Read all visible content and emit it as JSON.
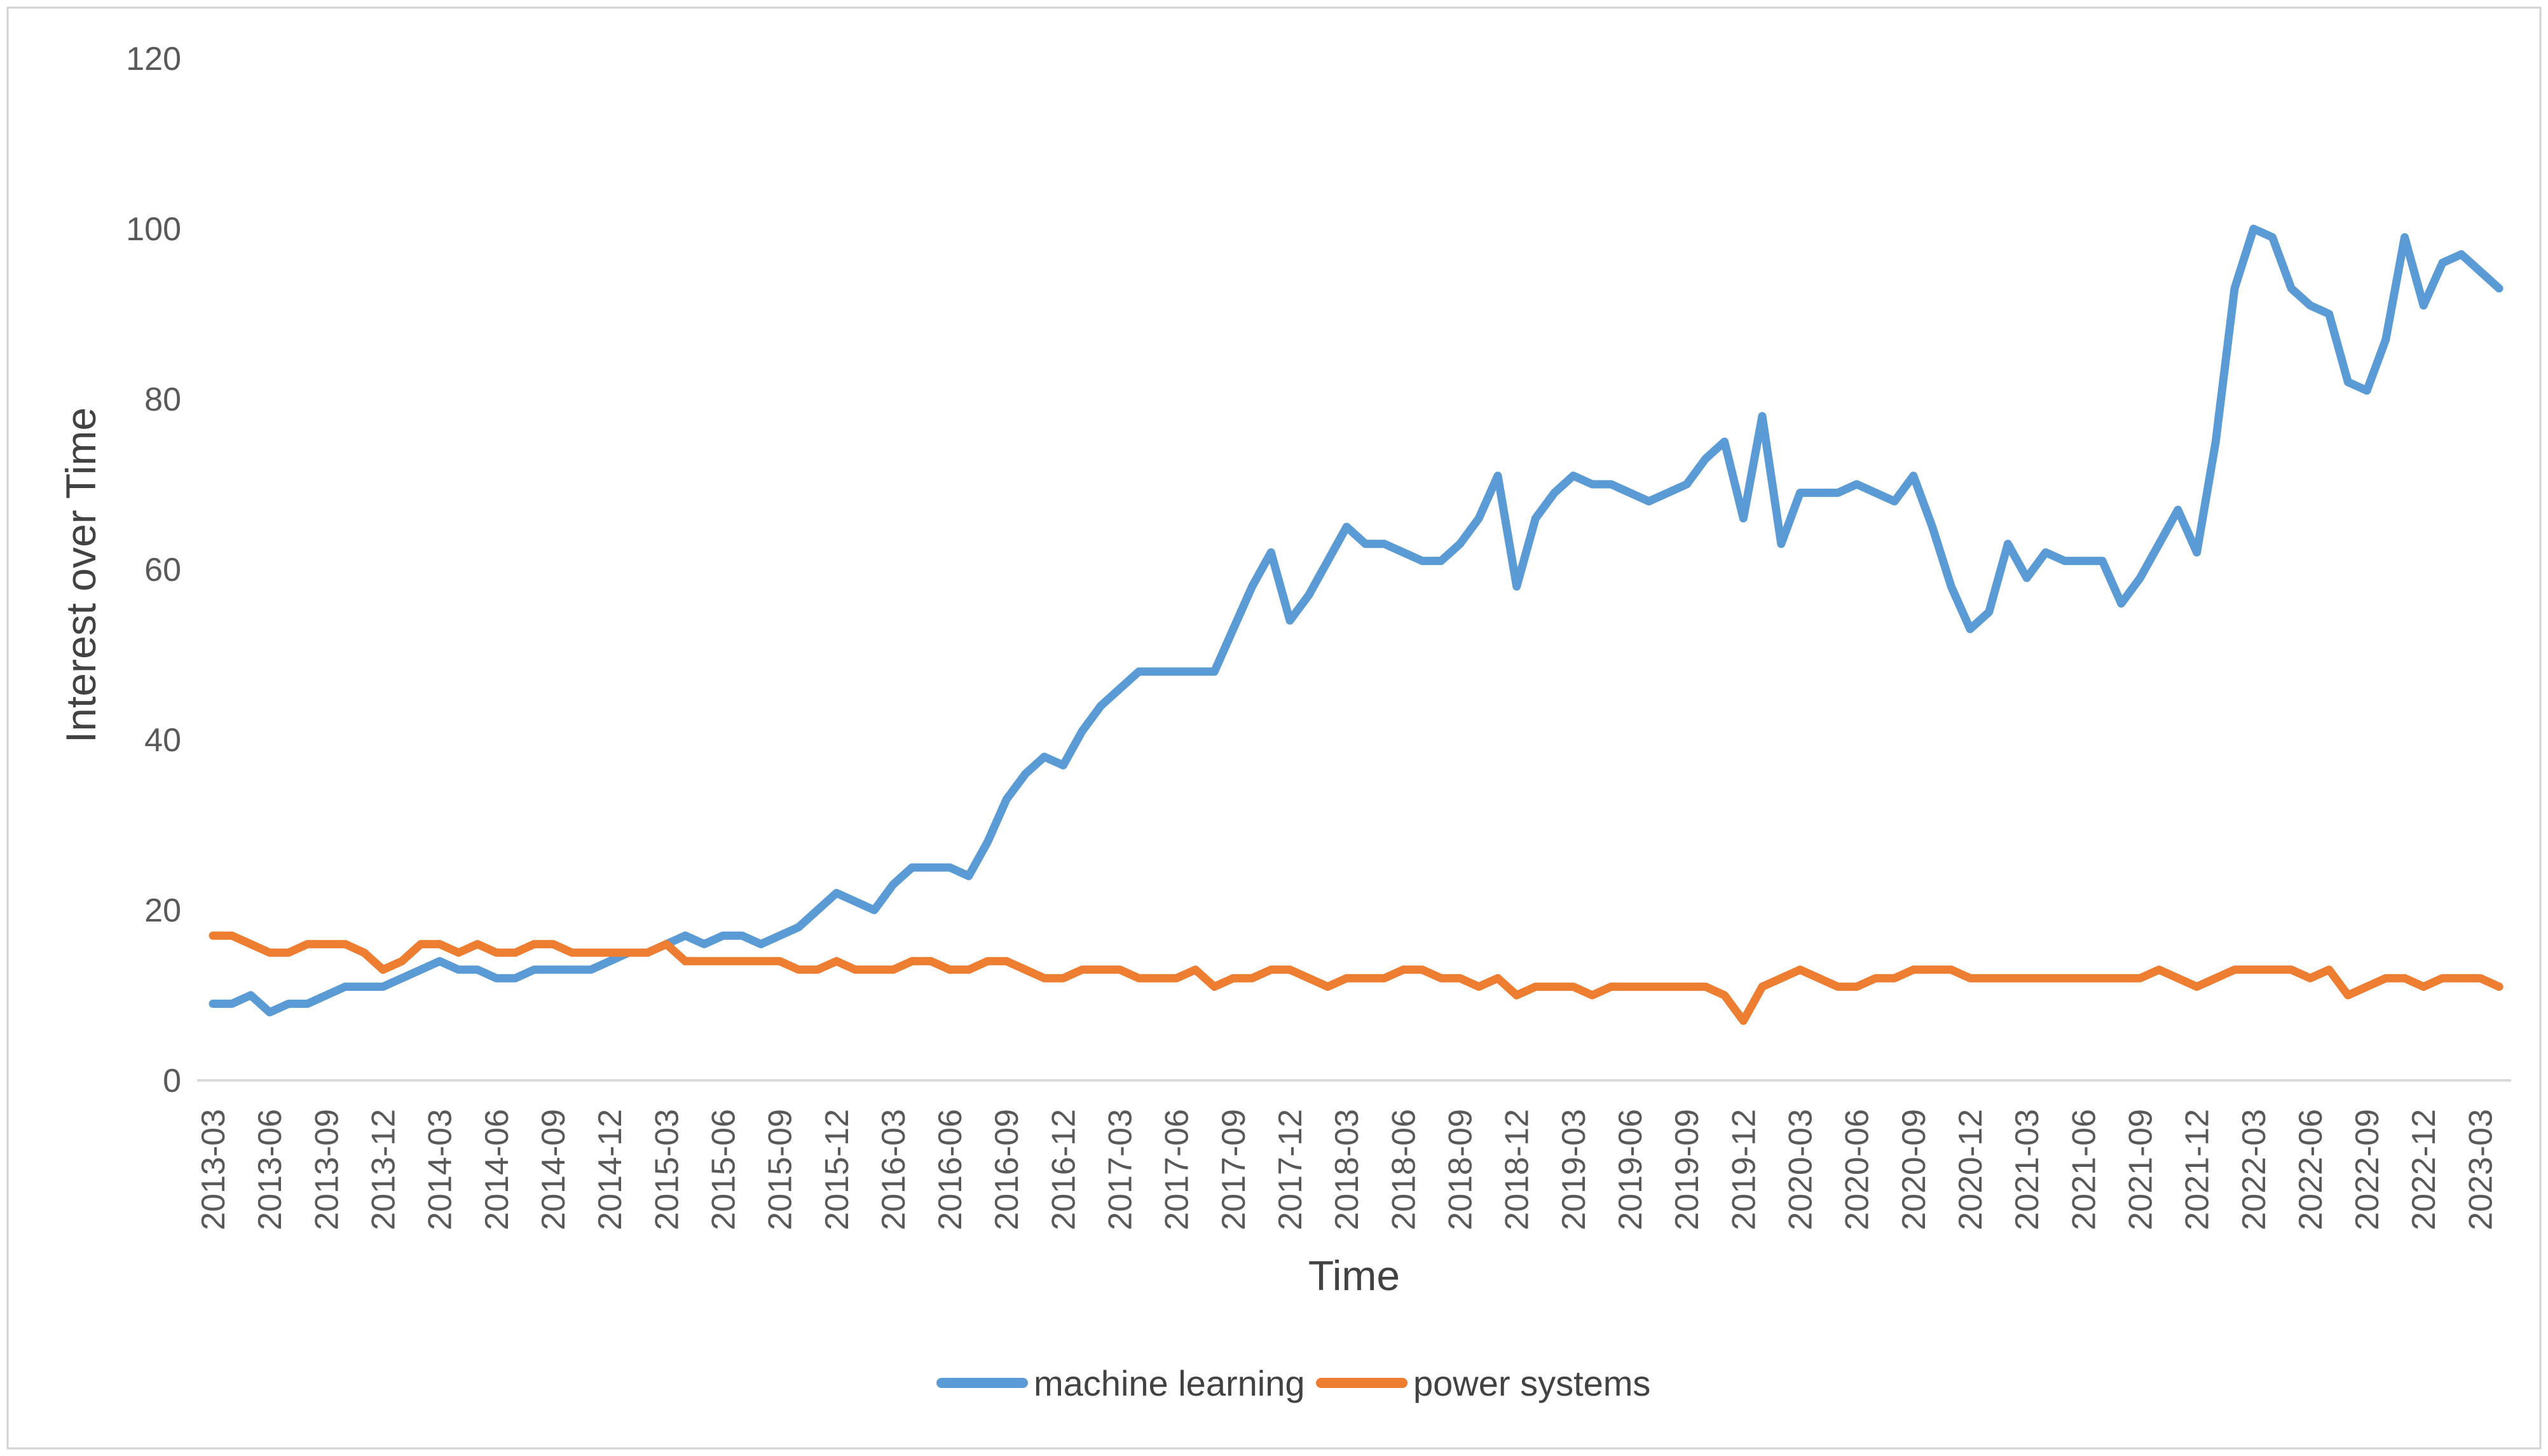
{
  "chart_data": {
    "type": "line",
    "title": "",
    "xlabel": "Time",
    "ylabel": "Interest over Time",
    "ylim": [
      0,
      120
    ],
    "y_ticks": [
      0,
      20,
      40,
      60,
      80,
      100,
      120
    ],
    "grid": false,
    "legend_position": "bottom",
    "x_ticks": [
      "2013-03",
      "2013-06",
      "2013-09",
      "2013-12",
      "2014-03",
      "2014-06",
      "2014-09",
      "2014-12",
      "2015-03",
      "2015-06",
      "2015-09",
      "2015-12",
      "2016-03",
      "2016-06",
      "2016-09",
      "2016-12",
      "2017-03",
      "2017-06",
      "2017-09",
      "2017-12",
      "2018-03",
      "2018-06",
      "2018-09",
      "2018-12",
      "2019-03",
      "2019-06",
      "2019-09",
      "2019-12",
      "2020-03",
      "2020-06",
      "2020-09",
      "2020-12",
      "2021-03",
      "2021-06",
      "2021-09",
      "2021-12",
      "2022-03",
      "2022-06",
      "2022-09",
      "2022-12",
      "2023-03"
    ],
    "x": [
      "2013-03",
      "2013-04",
      "2013-05",
      "2013-06",
      "2013-07",
      "2013-08",
      "2013-09",
      "2013-10",
      "2013-11",
      "2013-12",
      "2014-01",
      "2014-02",
      "2014-03",
      "2014-04",
      "2014-05",
      "2014-06",
      "2014-07",
      "2014-08",
      "2014-09",
      "2014-10",
      "2014-11",
      "2014-12",
      "2015-01",
      "2015-02",
      "2015-03",
      "2015-04",
      "2015-05",
      "2015-06",
      "2015-07",
      "2015-08",
      "2015-09",
      "2015-10",
      "2015-11",
      "2015-12",
      "2016-01",
      "2016-02",
      "2016-03",
      "2016-04",
      "2016-05",
      "2016-06",
      "2016-07",
      "2016-08",
      "2016-09",
      "2016-10",
      "2016-11",
      "2016-12",
      "2017-01",
      "2017-02",
      "2017-03",
      "2017-04",
      "2017-05",
      "2017-06",
      "2017-07",
      "2017-08",
      "2017-09",
      "2017-10",
      "2017-11",
      "2017-12",
      "2018-01",
      "2018-02",
      "2018-03",
      "2018-04",
      "2018-05",
      "2018-06",
      "2018-07",
      "2018-08",
      "2018-09",
      "2018-10",
      "2018-11",
      "2018-12",
      "2019-01",
      "2019-02",
      "2019-03",
      "2019-04",
      "2019-05",
      "2019-06",
      "2019-07",
      "2019-08",
      "2019-09",
      "2019-10",
      "2019-11",
      "2019-12",
      "2020-01",
      "2020-02",
      "2020-03",
      "2020-04",
      "2020-05",
      "2020-06",
      "2020-07",
      "2020-08",
      "2020-09",
      "2020-10",
      "2020-11",
      "2020-12",
      "2021-01",
      "2021-02",
      "2021-03",
      "2021-04",
      "2021-05",
      "2021-06",
      "2021-07",
      "2021-08",
      "2021-09",
      "2021-10",
      "2021-11",
      "2021-12",
      "2022-01",
      "2022-02",
      "2022-03",
      "2022-04",
      "2022-05",
      "2022-06",
      "2022-07",
      "2022-08",
      "2022-09",
      "2022-10",
      "2022-11",
      "2022-12",
      "2023-01",
      "2023-02",
      "2023-03",
      "2023-04"
    ],
    "series": [
      {
        "name": "machine learning",
        "color": "#5B9BD5",
        "values": [
          9,
          9,
          10,
          8,
          9,
          9,
          10,
          11,
          11,
          11,
          12,
          13,
          14,
          13,
          13,
          12,
          12,
          13,
          13,
          13,
          13,
          14,
          15,
          15,
          16,
          17,
          16,
          17,
          17,
          16,
          17,
          18,
          20,
          22,
          21,
          20,
          23,
          25,
          25,
          25,
          24,
          28,
          33,
          36,
          38,
          37,
          41,
          44,
          46,
          48,
          48,
          48,
          48,
          48,
          53,
          58,
          62,
          54,
          57,
          61,
          65,
          63,
          63,
          62,
          61,
          61,
          63,
          66,
          71,
          58,
          66,
          69,
          71,
          70,
          70,
          69,
          68,
          69,
          70,
          73,
          75,
          66,
          78,
          63,
          69,
          69,
          69,
          70,
          69,
          68,
          71,
          65,
          58,
          53,
          55,
          63,
          59,
          62,
          61,
          61,
          61,
          56,
          59,
          63,
          67,
          62,
          75,
          93,
          100,
          99,
          93,
          91,
          90,
          82,
          81,
          87,
          99,
          91,
          96,
          97,
          95,
          93
        ]
      },
      {
        "name": "power systems",
        "color": "#ED7D31",
        "values": [
          17,
          17,
          16,
          15,
          15,
          16,
          16,
          16,
          15,
          13,
          14,
          16,
          16,
          15,
          16,
          15,
          15,
          16,
          16,
          15,
          15,
          15,
          15,
          15,
          16,
          14,
          14,
          14,
          14,
          14,
          14,
          13,
          13,
          14,
          13,
          13,
          13,
          14,
          14,
          13,
          13,
          14,
          14,
          13,
          12,
          12,
          13,
          13,
          13,
          12,
          12,
          12,
          13,
          11,
          12,
          12,
          13,
          13,
          12,
          11,
          12,
          12,
          12,
          13,
          13,
          12,
          12,
          11,
          12,
          10,
          11,
          11,
          11,
          10,
          11,
          11,
          11,
          11,
          11,
          11,
          10,
          7,
          11,
          12,
          13,
          12,
          11,
          11,
          12,
          12,
          13,
          13,
          13,
          12,
          12,
          12,
          12,
          12,
          12,
          12,
          12,
          12,
          12,
          13,
          12,
          11,
          12,
          13,
          13,
          13,
          13,
          12,
          13,
          10,
          11,
          12,
          12,
          11,
          12,
          12,
          12,
          11
        ]
      }
    ],
    "axis_text_color": "#595959"
  }
}
